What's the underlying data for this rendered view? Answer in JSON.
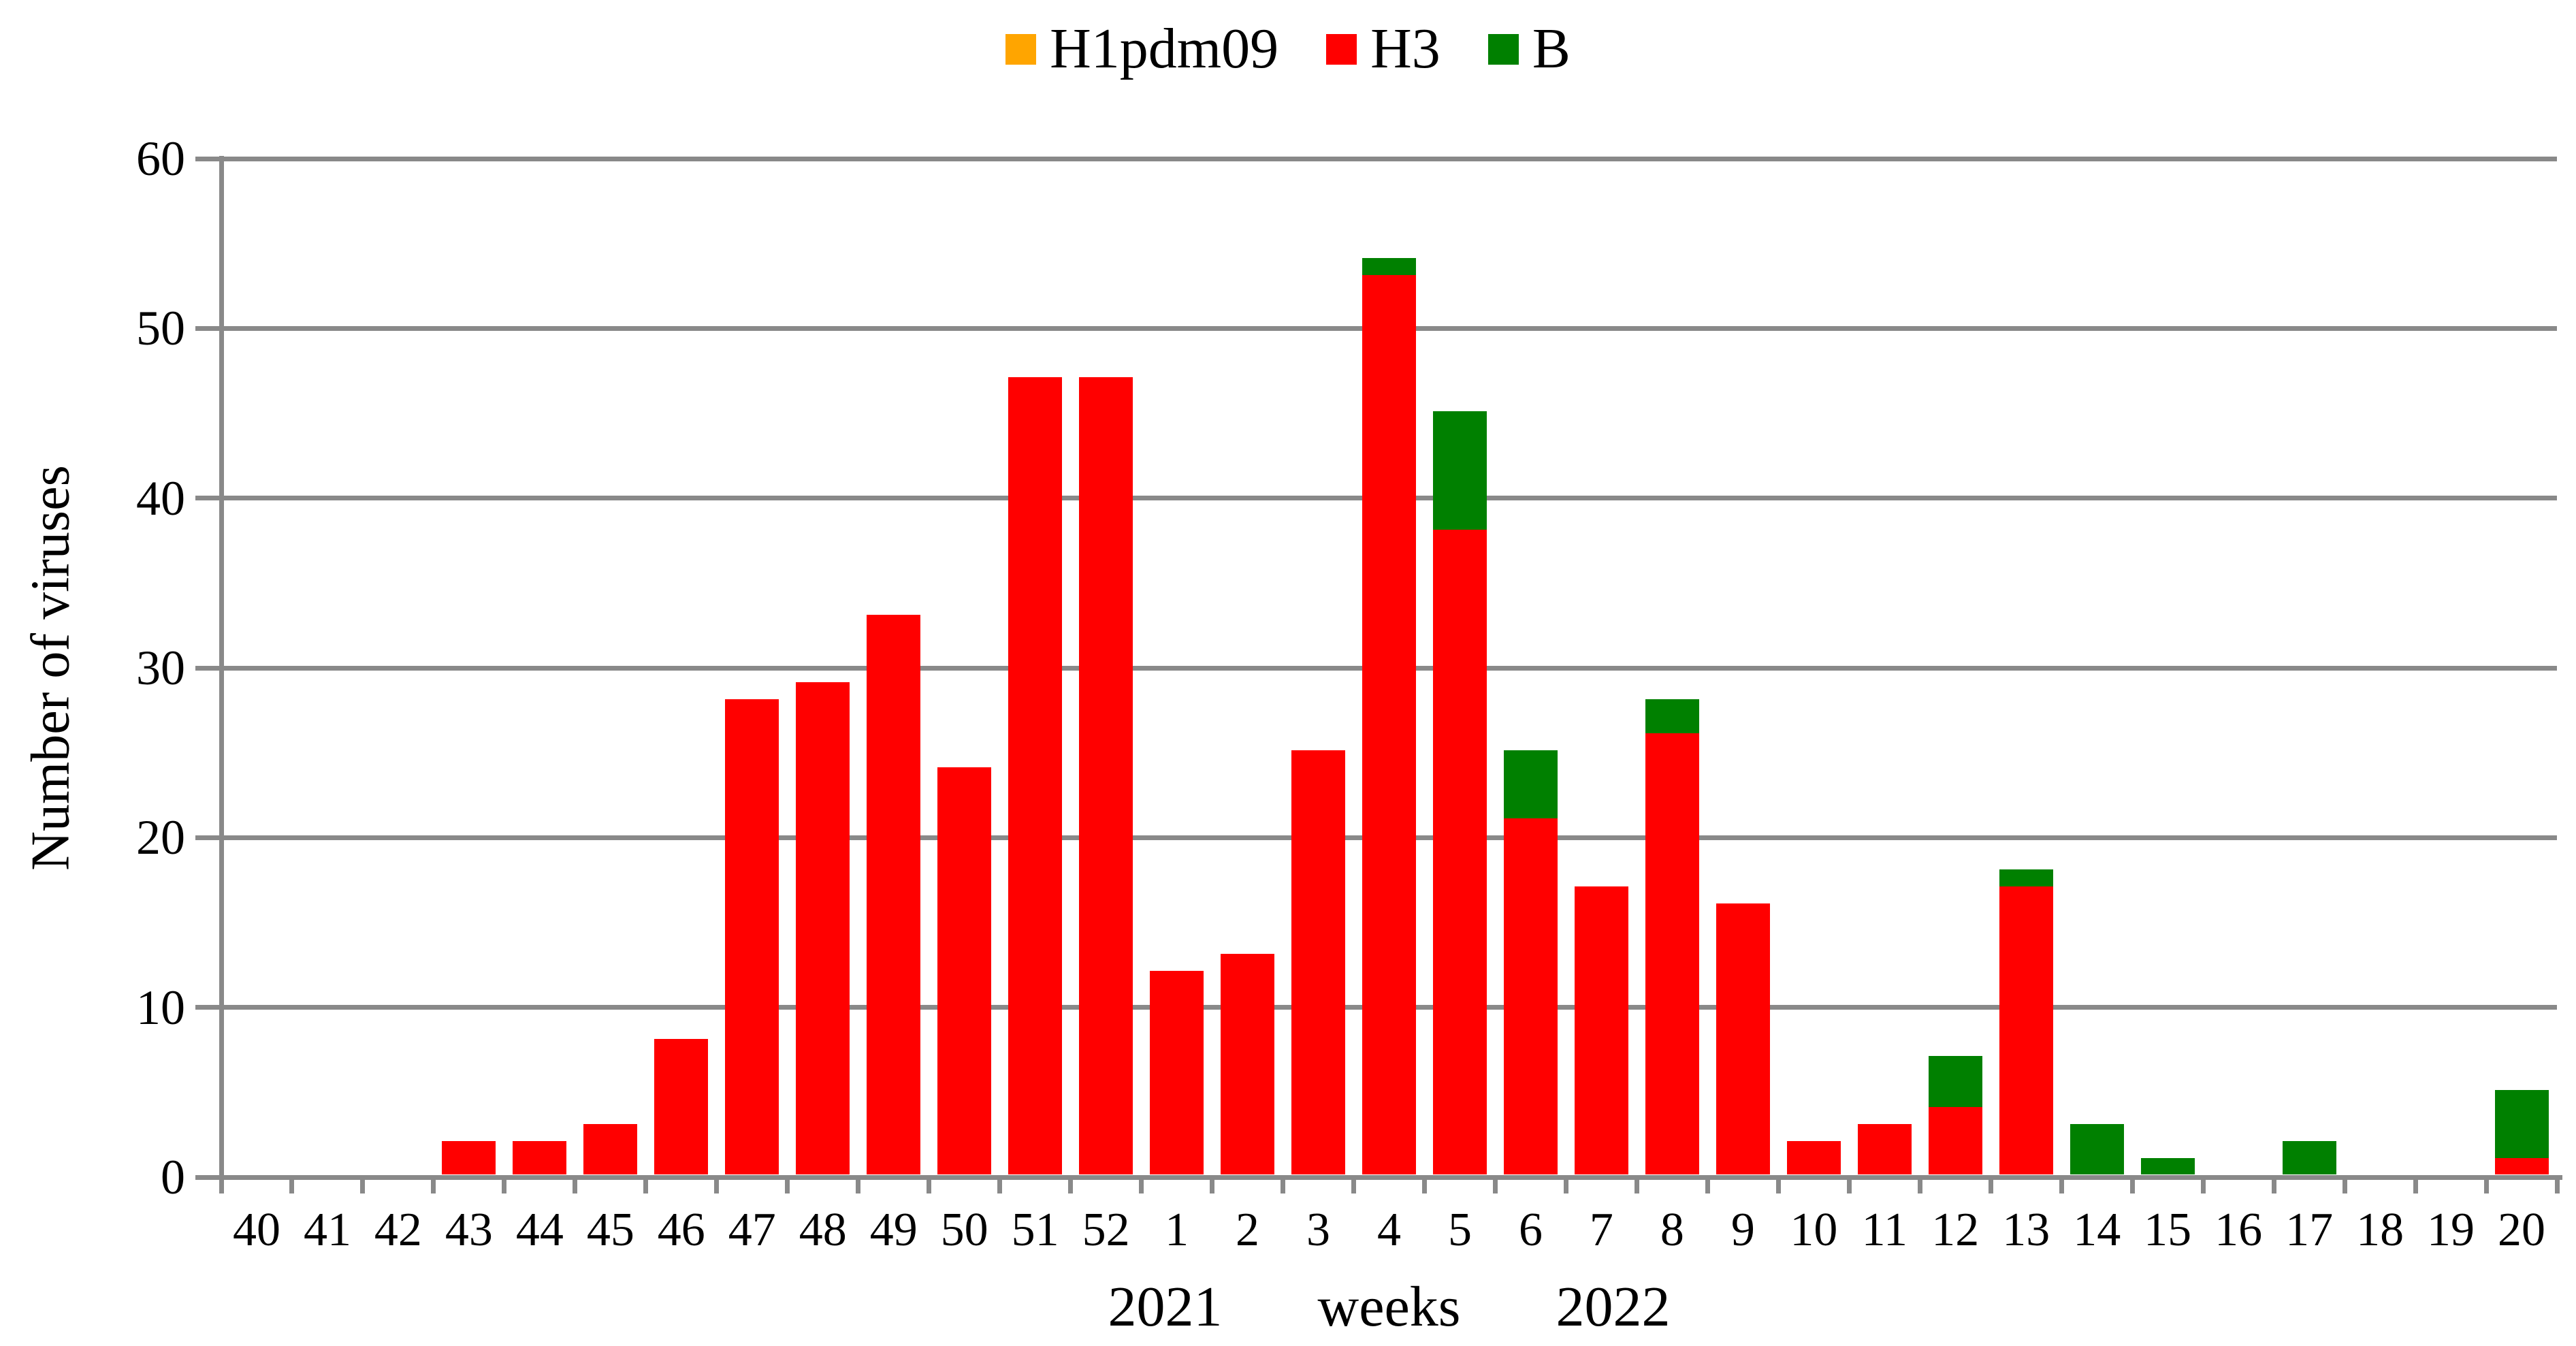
{
  "legend": {
    "items": [
      {
        "label": "H1pdm09",
        "color": "#FFA500"
      },
      {
        "label": "H3",
        "color": "#FF0000"
      },
      {
        "label": "B",
        "color": "#008000"
      }
    ]
  },
  "y_axis": {
    "label": "Number of viruses",
    "tick_labels": [
      "0",
      "10",
      "20",
      "30",
      "40",
      "50",
      "60"
    ]
  },
  "x_axis": {
    "year_left": "2021",
    "word": "weeks",
    "year_right": "2022"
  },
  "colors": {
    "grid": "#898989",
    "axis": "#898989",
    "background": "#FFFFFF",
    "text": "#000000"
  },
  "chart_data": {
    "type": "bar",
    "stacked": true,
    "title": "",
    "xlabel": "2021 weeks 2022",
    "ylabel": "Number of viruses",
    "ylim": [
      0,
      60
    ],
    "y_tick_step": 10,
    "grid": true,
    "legend_position": "top",
    "categories": [
      "40",
      "41",
      "42",
      "43",
      "44",
      "45",
      "46",
      "47",
      "48",
      "49",
      "50",
      "51",
      "52",
      "1",
      "2",
      "3",
      "4",
      "5",
      "6",
      "7",
      "8",
      "9",
      "10",
      "11",
      "12",
      "13",
      "14",
      "15",
      "16",
      "17",
      "18",
      "19",
      "20"
    ],
    "series": [
      {
        "name": "H1pdm09",
        "color": "#FFA500",
        "values": [
          0,
          0,
          0,
          0,
          0,
          0,
          0,
          0,
          0,
          0,
          0,
          0,
          0,
          0,
          0,
          0,
          0,
          0,
          0,
          0,
          0,
          0,
          0,
          0,
          0,
          0,
          0,
          0,
          0,
          0,
          0,
          0,
          0
        ]
      },
      {
        "name": "H3",
        "color": "#FF0000",
        "values": [
          0,
          0,
          0,
          2,
          2,
          3,
          8,
          28,
          29,
          33,
          24,
          47,
          47,
          12,
          13,
          25,
          53,
          38,
          21,
          17,
          26,
          16,
          2,
          3,
          4,
          17,
          0,
          0,
          0,
          0,
          0,
          0,
          1
        ]
      },
      {
        "name": "B",
        "color": "#008000",
        "values": [
          0,
          0,
          0,
          0,
          0,
          0,
          0,
          0,
          0,
          0,
          0,
          0,
          0,
          0,
          0,
          0,
          1,
          7,
          4,
          0,
          2,
          0,
          0,
          0,
          3,
          1,
          3,
          1,
          0,
          2,
          0,
          0,
          4
        ]
      }
    ]
  }
}
